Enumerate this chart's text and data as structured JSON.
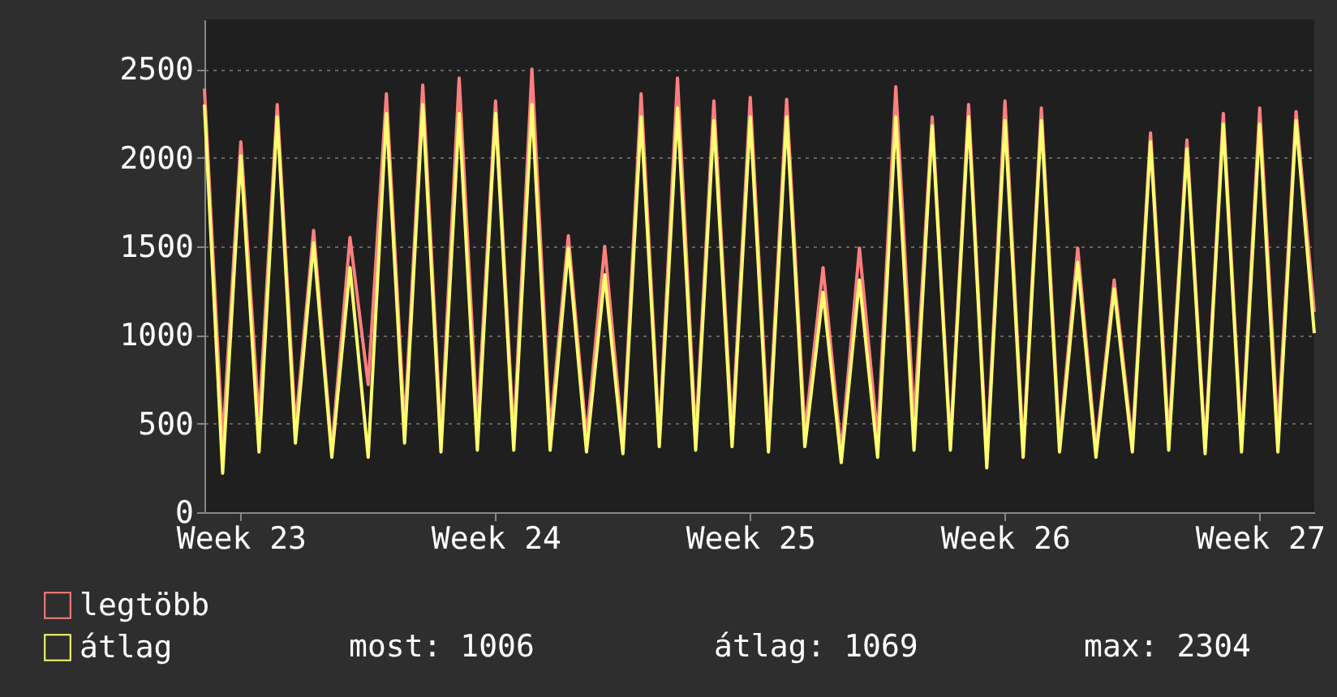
{
  "chart_data": {
    "type": "line",
    "categories": [
      null,
      null,
      "Week 23",
      null,
      null,
      null,
      null,
      null,
      null,
      null,
      null,
      null,
      null,
      null,
      null,
      null,
      "Week 24",
      null,
      null,
      null,
      null,
      null,
      null,
      null,
      null,
      null,
      null,
      null,
      null,
      null,
      "Week 25",
      null,
      null,
      null,
      null,
      null,
      null,
      null,
      null,
      null,
      null,
      null,
      null,
      null,
      "Week 26",
      null,
      null,
      null,
      null,
      null,
      null,
      null,
      null,
      null,
      null,
      null,
      null,
      null,
      "Week 27",
      null,
      null,
      null
    ],
    "series": [
      {
        "name": "legtöbb",
        "color": "#ff7f7f",
        "values": [
          2390,
          390,
          2090,
          510,
          2300,
          480,
          1590,
          350,
          1550,
          720,
          2360,
          480,
          2410,
          420,
          2450,
          480,
          2320,
          420,
          2500,
          450,
          1560,
          420,
          1500,
          390,
          2360,
          420,
          2450,
          420,
          2320,
          440,
          2340,
          420,
          2330,
          450,
          1380,
          340,
          1490,
          420,
          2400,
          510,
          2230,
          390,
          2300,
          300,
          2320,
          350,
          2280,
          390,
          1490,
          350,
          1310,
          390,
          2140,
          420,
          2100,
          370,
          2250,
          390,
          2280,
          450,
          2260,
          1130
        ]
      },
      {
        "name": "átlag",
        "color": "#ffff70",
        "values": [
          2300,
          220,
          2010,
          340,
          2230,
          390,
          1520,
          310,
          1380,
          310,
          2250,
          390,
          2300,
          340,
          2250,
          350,
          2250,
          350,
          2300,
          350,
          1490,
          340,
          1340,
          330,
          2230,
          370,
          2280,
          350,
          2210,
          370,
          2230,
          340,
          2230,
          370,
          1240,
          280,
          1310,
          310,
          2230,
          350,
          2180,
          350,
          2230,
          250,
          2210,
          310,
          2210,
          340,
          1410,
          310,
          1260,
          340,
          2090,
          350,
          2050,
          330,
          2190,
          340,
          2190,
          340,
          2210,
          1010
        ]
      }
    ],
    "ylim": [
      0,
      2780
    ],
    "yticks": [
      0,
      500,
      1000,
      1500,
      2000,
      2500
    ],
    "grid": "y",
    "legend": "bottom left",
    "marker": "none",
    "line_style": "solid",
    "annotations": [
      "most: 1006",
      "átlag: 1069",
      "max: 2304"
    ]
  }
}
